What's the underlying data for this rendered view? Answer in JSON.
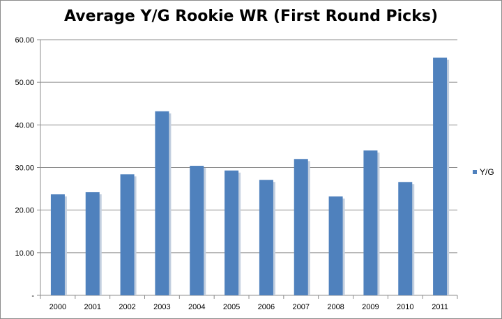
{
  "chart_data": {
    "type": "bar",
    "title": "Average Y/G  Rookie WR (First Round Picks)",
    "xlabel": "",
    "ylabel": "",
    "categories": [
      "2000",
      "2001",
      "2002",
      "2003",
      "2004",
      "2005",
      "2006",
      "2007",
      "2008",
      "2009",
      "2010",
      "2011"
    ],
    "series": [
      {
        "name": "Y/G",
        "values": [
          23.7,
          24.2,
          28.4,
          43.2,
          30.4,
          29.3,
          27.1,
          32.0,
          23.2,
          34.0,
          26.6,
          55.8
        ]
      }
    ],
    "ylim": [
      0,
      60
    ],
    "y_ticks": [
      "-",
      "10.00",
      "20.00",
      "30.00",
      "40.00",
      "50.00",
      "60.00"
    ],
    "grid": true,
    "legend_position": "right",
    "colors": {
      "bar": "#4f81bd",
      "bar_shadow": "#c3cfdf",
      "grid": "#8c8c8c",
      "axis": "#8c8c8c"
    }
  }
}
